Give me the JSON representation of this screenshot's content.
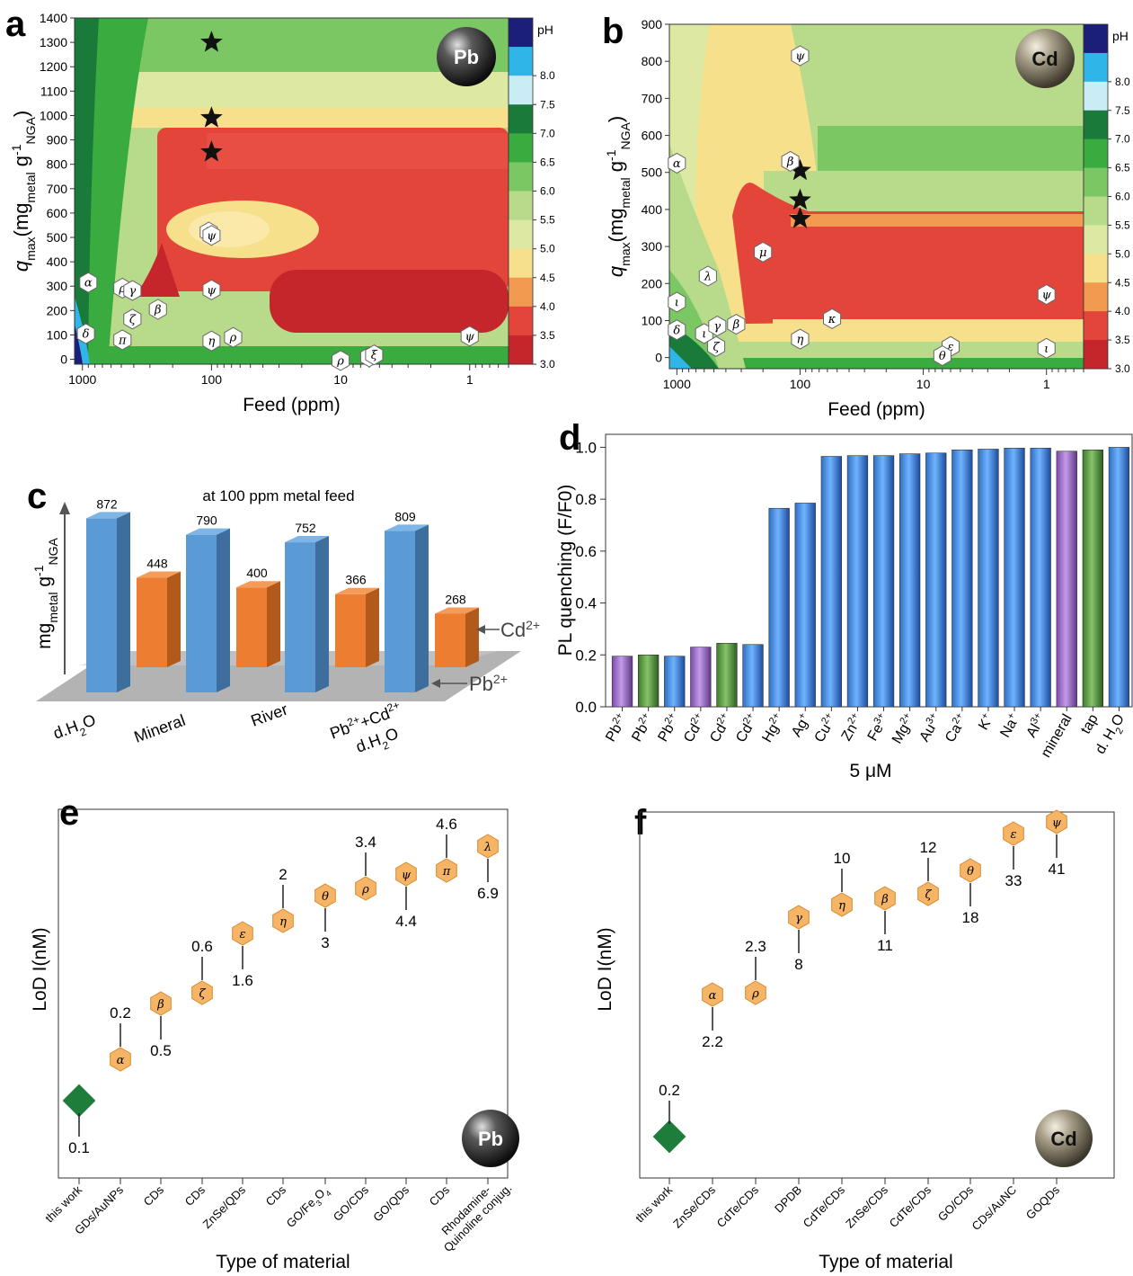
{
  "panels": {
    "a": {
      "label": "a",
      "metal": "Pb"
    },
    "b": {
      "label": "b",
      "metal": "Cd"
    },
    "c": {
      "label": "c"
    },
    "d": {
      "label": "d"
    },
    "e": {
      "label": "e",
      "metal": "Pb"
    },
    "f": {
      "label": "f",
      "metal": "Cd"
    }
  },
  "chart_data": [
    {
      "id": "a",
      "type": "heatmap",
      "xlabel": "Feed (ppm)",
      "x_scale": "log",
      "x_reversed": true,
      "xlim": [
        0.5,
        1150
      ],
      "xticks": [
        "1000",
        "100",
        "10",
        "1"
      ],
      "ylabel": "q_max(mg_metal g^-1_NGA)",
      "ylim": [
        -20,
        1400
      ],
      "yticks": [
        0,
        100,
        200,
        300,
        400,
        500,
        600,
        700,
        800,
        900,
        1000,
        1100,
        1200,
        1300,
        1400
      ],
      "colorbar": {
        "label": "pH",
        "ticks": [
          "8.0",
          "7.5",
          "7.0",
          "6.5",
          "6.0",
          "5.5",
          "5.0",
          "4.5",
          "4.0",
          "3.5",
          "3.0"
        ]
      },
      "stars": [
        {
          "feed": 100,
          "q": 1300
        },
        {
          "feed": 100,
          "q": 990
        },
        {
          "feed": 100,
          "q": 850
        }
      ],
      "markers": [
        {
          "sym": "α",
          "feed": 900,
          "q": 315
        },
        {
          "sym": "ρ",
          "feed": 490,
          "q": 292
        },
        {
          "sym": "γ",
          "feed": 410,
          "q": 282
        },
        {
          "sym": "β",
          "feed": 260,
          "q": 205
        },
        {
          "sym": "ζ",
          "feed": 410,
          "q": 165
        },
        {
          "sym": "π",
          "feed": 490,
          "q": 80
        },
        {
          "sym": "δ",
          "feed": 940,
          "q": 105
        },
        {
          "sym": "λ",
          "feed": 105,
          "q": 522
        },
        {
          "sym": "ψ",
          "feed": 100,
          "q": 508
        },
        {
          "sym": "ψ",
          "feed": 100,
          "q": 285
        },
        {
          "sym": "η",
          "feed": 100,
          "q": 75
        },
        {
          "sym": "ρ",
          "feed": 68,
          "q": 90
        },
        {
          "sym": "ρ",
          "feed": 10,
          "q": -5
        },
        {
          "sym": "θ",
          "feed": 6,
          "q": 10
        },
        {
          "sym": "ξ",
          "feed": 5.5,
          "q": 18
        },
        {
          "sym": "ψ",
          "feed": 1,
          "q": 95
        }
      ]
    },
    {
      "id": "b",
      "type": "heatmap",
      "xlabel": "Feed (ppm)",
      "x_scale": "log",
      "x_reversed": true,
      "xlim": [
        0.5,
        1150
      ],
      "xticks": [
        "1000",
        "100",
        "10",
        "1"
      ],
      "ylabel": "q_max(mg_metal g^-1_NGA)",
      "ylim": [
        -30,
        900
      ],
      "yticks": [
        0,
        100,
        200,
        300,
        400,
        500,
        600,
        700,
        800,
        900
      ],
      "colorbar": {
        "label": "pH",
        "ticks": [
          "8.0",
          "7.5",
          "7.0",
          "6.5",
          "6.0",
          "5.5",
          "5.0",
          "4.5",
          "4.0",
          "3.5",
          "3.0"
        ]
      },
      "stars": [
        {
          "feed": 100,
          "q": 505
        },
        {
          "feed": 100,
          "q": 425
        },
        {
          "feed": 100,
          "q": 375
        }
      ],
      "markers": [
        {
          "sym": "ψ",
          "feed": 100,
          "q": 815
        },
        {
          "sym": "α",
          "feed": 1000,
          "q": 525
        },
        {
          "sym": "β",
          "feed": 120,
          "q": 530
        },
        {
          "sym": "μ",
          "feed": 200,
          "q": 285
        },
        {
          "sym": "λ",
          "feed": 560,
          "q": 220
        },
        {
          "sym": "ι",
          "feed": 1000,
          "q": 150
        },
        {
          "sym": "δ",
          "feed": 1000,
          "q": 75
        },
        {
          "sym": "ι",
          "feed": 600,
          "q": 65
        },
        {
          "sym": "γ",
          "feed": 470,
          "q": 85
        },
        {
          "sym": "β",
          "feed": 330,
          "q": 90
        },
        {
          "sym": "ζ",
          "feed": 480,
          "q": 30
        },
        {
          "sym": "η",
          "feed": 100,
          "q": 50
        },
        {
          "sym": "κ",
          "feed": 55,
          "q": 105
        },
        {
          "sym": "ε",
          "feed": 6,
          "q": 30
        },
        {
          "sym": "θ",
          "feed": 7,
          "q": 5
        },
        {
          "sym": "ψ",
          "feed": 1,
          "q": 170
        },
        {
          "sym": "ι",
          "feed": 1,
          "q": 25
        }
      ]
    },
    {
      "id": "c",
      "type": "bar",
      "title": "at 100 ppm metal feed",
      "ylabel": "mg_metal g^-1_NGA",
      "categories": [
        "d.H2O",
        "Mineral",
        "River",
        "Pb2+ + Cd2+ d.H2O"
      ],
      "category_labels": [
        [
          "d.H",
          "2",
          "O"
        ],
        [
          "Mineral"
        ],
        [
          "River"
        ],
        [
          "Pb",
          "2+",
          "+Cd",
          "2+",
          "d.H",
          "2",
          "O"
        ]
      ],
      "series": [
        {
          "name": "Pb2+",
          "color": "#5b9bd5",
          "values": [
            872,
            790,
            752,
            809
          ]
        },
        {
          "name": "Cd2+",
          "color": "#ed7d31",
          "values": [
            448,
            400,
            366,
            268
          ]
        }
      ],
      "series_labels": [
        [
          "Pb",
          "2+"
        ],
        [
          "Cd",
          "2+"
        ]
      ]
    },
    {
      "id": "d",
      "type": "bar",
      "xlabel": "5 μM",
      "ylabel": "PL quenching (F/F0)",
      "ylim": [
        0,
        1.05
      ],
      "yticks": [
        "0.0",
        "0.2",
        "0.4",
        "0.6",
        "0.8",
        "1.0"
      ],
      "categories": [
        "Pb2+ (mineral)",
        "Pb2+ (tap)",
        "Pb2+",
        "Cd2+ (mineral)",
        "Cd2+ (tap)",
        "Cd2+",
        "Hg2+",
        "Ag+",
        "Cu2+",
        "Zn2+",
        "Fe3+",
        "Mg2+",
        "Au3+",
        "Ca2+",
        "K+",
        "Na+",
        "Al3+",
        "mineral",
        "tap",
        "d. H2O"
      ],
      "tick_labels": [
        [
          "Pb",
          "2+"
        ],
        [
          "Pb",
          "2+"
        ],
        [
          "Pb",
          "2+"
        ],
        [
          "Cd",
          "2+"
        ],
        [
          "Cd",
          "2+"
        ],
        [
          "Cd",
          "2+"
        ],
        [
          "Hg",
          "2+"
        ],
        [
          "Ag",
          "+"
        ],
        [
          "Cu",
          "2+"
        ],
        [
          "Zn",
          "2+"
        ],
        [
          "Fe",
          "3+"
        ],
        [
          "Mg",
          "2+"
        ],
        [
          "Au",
          "3+"
        ],
        [
          "Ca",
          "2+"
        ],
        [
          "K",
          "+"
        ],
        [
          "Na",
          "+"
        ],
        [
          "Al",
          "3+"
        ],
        [
          "mineral",
          ""
        ],
        [
          "tap",
          ""
        ],
        [
          "d. H",
          "2",
          "O"
        ]
      ],
      "values": [
        0.195,
        0.2,
        0.195,
        0.23,
        0.245,
        0.24,
        0.765,
        0.785,
        0.965,
        0.968,
        0.968,
        0.975,
        0.978,
        0.99,
        0.993,
        0.997,
        0.997,
        0.985,
        0.99,
        1.0
      ],
      "colors": [
        "#9b6bc2",
        "#5c9a3c",
        "#3f86d6",
        "#9b6bc2",
        "#5c9a3c",
        "#3f86d6",
        "#3f86d6",
        "#3f86d6",
        "#3f86d6",
        "#3f86d6",
        "#3f86d6",
        "#3f86d6",
        "#3f86d6",
        "#3f86d6",
        "#3f86d6",
        "#3f86d6",
        "#3f86d6",
        "#9b6bc2",
        "#5c9a3c",
        "#3f86d6"
      ]
    },
    {
      "id": "e",
      "type": "scatter",
      "xlabel": "Type of material",
      "ylabel": "LoD I(nM)",
      "categories": [
        "this work",
        "GDs/AuNPs",
        "CDs",
        "CDs",
        "ZnSe/QDs",
        "CDs",
        "GO/Fe3O4",
        "GO/CDs",
        "GO/QDs",
        "CDs",
        "Rhodamine-Quinoline conjug."
      ],
      "points": [
        {
          "sym": "",
          "value": "0.1",
          "label_pos": "below"
        },
        {
          "sym": "α",
          "value": "0.2",
          "label_pos": "above"
        },
        {
          "sym": "β",
          "value": "0.5",
          "label_pos": "below"
        },
        {
          "sym": "ζ",
          "value": "0.6",
          "label_pos": "above"
        },
        {
          "sym": "ε",
          "value": "1.6",
          "label_pos": "below"
        },
        {
          "sym": "η",
          "value": "2",
          "label_pos": "above"
        },
        {
          "sym": "θ",
          "value": "3",
          "label_pos": "below"
        },
        {
          "sym": "ρ",
          "value": "3.4",
          "label_pos": "above"
        },
        {
          "sym": "ψ",
          "value": "4.4",
          "label_pos": "below"
        },
        {
          "sym": "π",
          "value": "4.6",
          "label_pos": "above"
        },
        {
          "sym": "λ",
          "value": "6.9",
          "label_pos": "below"
        }
      ]
    },
    {
      "id": "f",
      "type": "scatter",
      "xlabel": "Type of material",
      "ylabel": "LoD I(nM)",
      "categories": [
        "this work",
        "ZnSe/CDs",
        "CdTe/CDs",
        "DPDB",
        "CdTe/CDs",
        "ZnSe/CDs",
        "CdTe/CDs",
        "GO/CDs",
        "CDs/AuNC",
        "GOQDs"
      ],
      "points": [
        {
          "sym": "",
          "value": "0.2",
          "label_pos": "above"
        },
        {
          "sym": "α",
          "value": "2.2",
          "label_pos": "below"
        },
        {
          "sym": "ρ",
          "value": "2.3",
          "label_pos": "above"
        },
        {
          "sym": "γ",
          "value": "8",
          "label_pos": "below"
        },
        {
          "sym": "η",
          "value": "10",
          "label_pos": "above"
        },
        {
          "sym": "β",
          "value": "11",
          "label_pos": "below"
        },
        {
          "sym": "ζ",
          "value": "12",
          "label_pos": "above"
        },
        {
          "sym": "θ",
          "value": "18",
          "label_pos": "below"
        },
        {
          "sym": "ε",
          "value": "33",
          "label_pos": "below"
        },
        {
          "sym": "ψ",
          "value": "41",
          "label_pos": "below"
        }
      ]
    }
  ],
  "colors": {
    "this_work": "#1e7d3a",
    "hexagon": "#f6b466",
    "hexagon_stroke": "#d98a2b",
    "pH_scale": [
      "#1b1f7a",
      "#2fb5e8",
      "#c9ecf5",
      "#1a7a3a",
      "#3aab3f",
      "#7bc763",
      "#b8db8b",
      "#dde9a3",
      "#f7e08c",
      "#f29a4f",
      "#e3453a",
      "#c4262b"
    ]
  }
}
